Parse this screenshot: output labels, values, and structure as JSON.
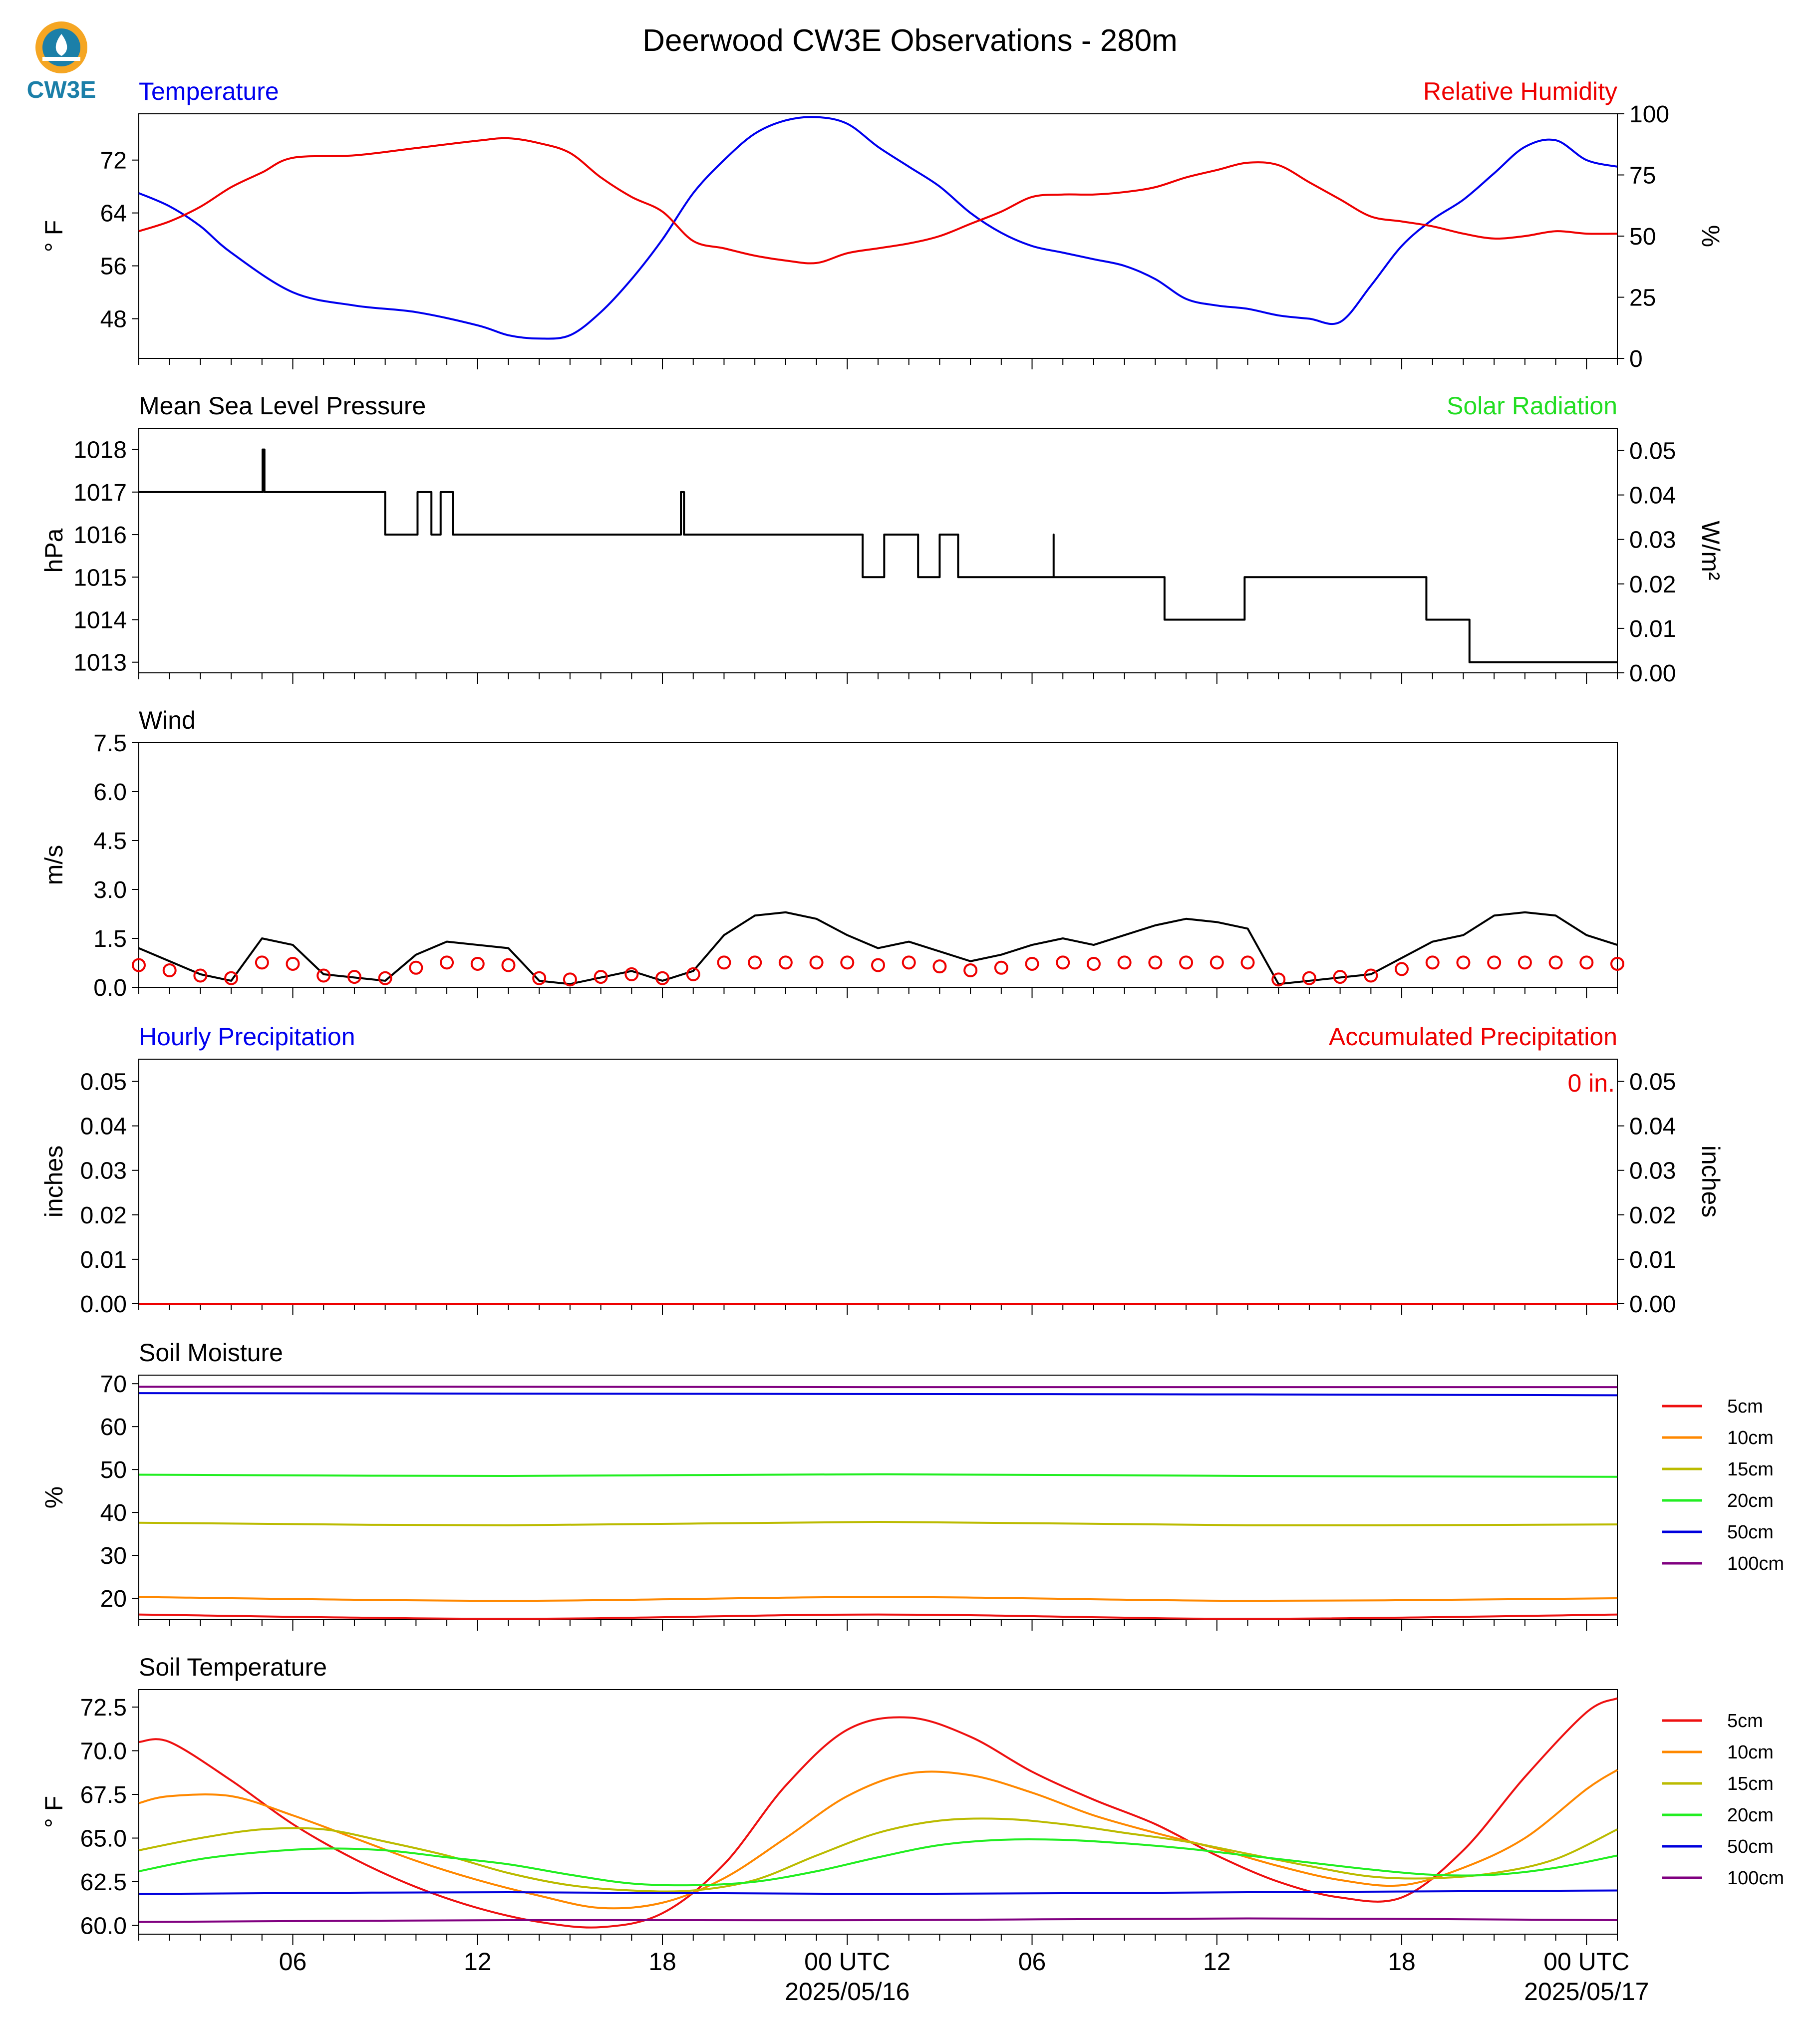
{
  "title": "Deerwood CW3E Observations - 280m",
  "logo_text": "CW3E",
  "colors": {
    "blue": "#0000ee",
    "red": "#ee0000",
    "green": "#22dd22",
    "black": "#000000",
    "s5": "#ee1111",
    "s10": "#ff8800",
    "s15": "#bbbb00",
    "s20": "#22ee22",
    "s50": "#0000dd",
    "s100": "#800080"
  },
  "time_axis": {
    "ticks": [
      "06",
      "12",
      "18",
      "00 UTC",
      "06",
      "12",
      "18",
      "00 UTC"
    ],
    "tick_hours": [
      6,
      12,
      18,
      24,
      30,
      36,
      42,
      48
    ],
    "date_labels": [
      "2025/05/16",
      "2025/05/17"
    ],
    "range_hours": [
      1,
      49
    ]
  },
  "panels": {
    "temp_rh": {
      "left_title": "Temperature",
      "right_title": "Relative Humidity",
      "ylabel": "° F",
      "y2label": "%"
    },
    "pressure": {
      "left_title": "Mean Sea Level Pressure",
      "right_title": "Solar Radiation",
      "ylabel": "hPa",
      "y2label": "W/m²"
    },
    "wind": {
      "left_title": "Wind",
      "ylabel": "m/s"
    },
    "precip": {
      "left_title": "Hourly Precipitation",
      "right_title": "Accumulated Precipitation",
      "ylabel": "inches",
      "y2label": "inches",
      "annotation": "0 in."
    },
    "soil_moisture": {
      "left_title": "Soil Moisture",
      "ylabel": "%"
    },
    "soil_temp": {
      "left_title": "Soil Temperature",
      "ylabel": "° F"
    }
  },
  "legend": [
    "5cm",
    "10cm",
    "15cm",
    "20cm",
    "50cm",
    "100cm"
  ],
  "chart_data": [
    {
      "type": "line",
      "panel": "temp_rh",
      "xlabel": "",
      "ylabel": "° F",
      "ylim": [
        42,
        79
      ],
      "y_ticks": [
        48,
        56,
        64,
        72
      ],
      "y2lim": [
        0,
        100
      ],
      "y2_ticks": [
        0,
        25,
        50,
        75,
        100
      ],
      "series": [
        {
          "name": "Temperature",
          "axis": "left",
          "x": [
            1,
            2,
            3,
            4,
            6,
            8,
            10,
            12,
            13,
            14,
            15,
            16,
            17,
            18,
            19,
            20,
            21,
            22,
            23,
            24,
            25,
            26,
            27,
            28,
            29,
            30,
            31,
            32,
            33,
            34,
            35,
            36,
            37,
            38,
            39,
            40,
            41,
            42,
            43,
            44,
            45,
            46,
            47,
            48,
            49
          ],
          "y": [
            67,
            65,
            62,
            58,
            52,
            50,
            49,
            47,
            45.5,
            45,
            45.5,
            49,
            54,
            60,
            67,
            72,
            76,
            78,
            78.5,
            77.5,
            74,
            71,
            68,
            64,
            61,
            59,
            58,
            57,
            56,
            54,
            51,
            50,
            49.5,
            48.5,
            48,
            47.5,
            53,
            59,
            63,
            66,
            70,
            74,
            75,
            72,
            71
          ]
        },
        {
          "name": "Relative Humidity",
          "axis": "right",
          "x": [
            1,
            2,
            3,
            4,
            5,
            6,
            8,
            10,
            12,
            13,
            14,
            15,
            16,
            17,
            18,
            19,
            20,
            21,
            22,
            23,
            24,
            25,
            26,
            27,
            28,
            29,
            30,
            31,
            32,
            33,
            34,
            35,
            36,
            37,
            38,
            39,
            40,
            41,
            42,
            43,
            44,
            45,
            46,
            47,
            48,
            49
          ],
          "y": [
            52,
            56,
            62,
            70,
            76,
            82,
            83,
            86,
            89,
            90,
            88,
            84,
            74,
            66,
            60,
            48,
            45,
            42,
            40,
            39,
            43,
            45,
            47,
            50,
            55,
            60,
            66,
            67,
            67,
            68,
            70,
            74,
            77,
            80,
            79,
            72,
            65,
            58,
            56,
            54,
            51,
            49,
            50,
            52,
            51,
            51
          ]
        }
      ]
    },
    {
      "type": "line",
      "panel": "pressure",
      "ylabel": "hPa",
      "ylim": [
        1012.75,
        1018.5
      ],
      "y_ticks": [
        1013,
        1014,
        1015,
        1016,
        1017,
        1018
      ],
      "y2lim": [
        0,
        0.055
      ],
      "y2_ticks": [
        0.0,
        0.01,
        0.02,
        0.03,
        0.04,
        0.05
      ],
      "series": [
        {
          "name": "Mean Sea Level Pressure",
          "axis": "left",
          "step": true,
          "x": [
            1,
            5.0,
            5.02,
            5.08,
            8.9,
            9.0,
            10.0,
            10.05,
            10.5,
            10.5,
            10.8,
            10.8,
            11.2,
            11.2,
            18.6,
            18.7,
            24.5,
            24.5,
            25.2,
            25.2,
            26.3,
            26.3,
            27.0,
            27.0,
            27.6,
            27.6,
            30.7,
            30.7,
            34.3,
            34.3,
            36.9,
            36.9,
            42.8,
            42.8,
            44.2,
            44.2,
            49
          ],
          "y": [
            1017,
            1017,
            1018,
            1017,
            1017,
            1016,
            1016,
            1017,
            1017,
            1016,
            1016,
            1017,
            1017,
            1016,
            1017,
            1016,
            1016,
            1015,
            1015,
            1016,
            1016,
            1015,
            1015,
            1016,
            1016,
            1015,
            1016,
            1015,
            1015,
            1014,
            1014,
            1015,
            1015,
            1014,
            1014,
            1013,
            1013
          ]
        }
      ]
    },
    {
      "type": "line",
      "panel": "wind",
      "ylabel": "m/s",
      "ylim": [
        0,
        7.5
      ],
      "y_ticks": [
        0.0,
        1.5,
        3.0,
        4.5,
        6.0,
        7.5
      ],
      "series": [
        {
          "name": "Wind speed",
          "x": [
            1,
            2,
            3,
            4,
            5,
            6,
            7,
            8,
            9,
            10,
            11,
            12,
            13,
            14,
            15,
            16,
            17,
            18,
            19,
            20,
            21,
            22,
            23,
            24,
            25,
            26,
            27,
            28,
            29,
            30,
            31,
            32,
            33,
            34,
            35,
            36,
            37,
            38,
            39,
            40,
            41,
            42,
            43,
            44,
            45,
            46,
            47,
            48,
            49
          ],
          "y": [
            1.2,
            0.8,
            0.4,
            0.2,
            1.5,
            1.3,
            0.4,
            0.3,
            0.2,
            1.0,
            1.4,
            1.3,
            1.2,
            0.2,
            0.1,
            0.3,
            0.5,
            0.2,
            0.5,
            1.6,
            2.2,
            2.3,
            2.1,
            1.6,
            1.2,
            1.4,
            1.1,
            0.8,
            1.0,
            1.3,
            1.5,
            1.3,
            1.6,
            1.9,
            2.1,
            2.0,
            1.8,
            0.1,
            0.2,
            0.3,
            0.4,
            0.9,
            1.4,
            1.6,
            2.2,
            2.3,
            2.2,
            1.6,
            1.3
          ]
        }
      ],
      "barb_times": [
        1,
        2,
        3,
        4,
        5,
        6,
        7,
        8,
        9,
        10,
        11,
        12,
        13,
        14,
        15,
        16,
        17,
        18,
        19,
        20,
        21,
        22,
        23,
        24,
        25,
        26,
        27,
        28,
        29,
        30,
        31,
        32,
        33,
        34,
        35,
        36,
        37,
        38,
        39,
        40,
        41,
        42,
        43,
        44,
        45,
        46,
        47,
        48,
        49
      ]
    },
    {
      "type": "line",
      "panel": "precip",
      "ylabel": "inches",
      "ylim": [
        0,
        0.055
      ],
      "y_ticks": [
        0.0,
        0.01,
        0.02,
        0.03,
        0.04,
        0.05
      ],
      "y2_ticks": [
        0.0,
        0.01,
        0.02,
        0.03,
        0.04,
        0.05
      ],
      "series": [
        {
          "name": "Hourly Precipitation",
          "axis": "left",
          "x": [
            1,
            49
          ],
          "y": [
            0,
            0
          ]
        },
        {
          "name": "Accumulated Precipitation",
          "axis": "right",
          "x": [
            1,
            49
          ],
          "y": [
            0,
            0
          ]
        }
      ]
    },
    {
      "type": "line",
      "panel": "soil_moisture",
      "ylabel": "%",
      "ylim": [
        15,
        72
      ],
      "y_ticks": [
        20,
        30,
        40,
        50,
        60,
        70
      ],
      "series": [
        {
          "name": "5cm",
          "x": [
            1,
            13,
            25,
            37,
            49
          ],
          "y": [
            16.2,
            15.2,
            16.2,
            15.2,
            16.2
          ]
        },
        {
          "name": "10cm",
          "x": [
            1,
            13,
            25,
            37,
            49
          ],
          "y": [
            20.3,
            19.4,
            20.3,
            19.4,
            20.0
          ]
        },
        {
          "name": "15cm",
          "x": [
            1,
            13,
            25,
            37,
            49
          ],
          "y": [
            37.6,
            37.0,
            37.8,
            37.0,
            37.2
          ]
        },
        {
          "name": "20cm",
          "x": [
            1,
            13,
            25,
            37,
            49
          ],
          "y": [
            48.8,
            48.5,
            48.9,
            48.5,
            48.3
          ]
        },
        {
          "name": "50cm",
          "x": [
            1,
            13,
            25,
            37,
            49
          ],
          "y": [
            67.8,
            67.7,
            67.6,
            67.5,
            67.3
          ]
        },
        {
          "name": "100cm",
          "x": [
            1,
            13,
            25,
            37,
            49
          ],
          "y": [
            69.3,
            69.3,
            69.2,
            69.2,
            69.2
          ]
        }
      ]
    },
    {
      "type": "line",
      "panel": "soil_temp",
      "ylabel": "° F",
      "ylim": [
        59.5,
        73.5
      ],
      "y_ticks": [
        60.0,
        62.5,
        65.0,
        67.5,
        70.0,
        72.5
      ],
      "series": [
        {
          "name": "5cm",
          "x": [
            1,
            2,
            4,
            6,
            8,
            10,
            12,
            14,
            16,
            18,
            20,
            22,
            24,
            26,
            28,
            30,
            32,
            34,
            36,
            38,
            40,
            42,
            44,
            46,
            48,
            49
          ],
          "y": [
            70.5,
            70.5,
            68.3,
            65.8,
            63.8,
            62.2,
            61.0,
            60.2,
            59.9,
            60.7,
            63.5,
            68.0,
            71.2,
            71.9,
            70.8,
            68.8,
            67.2,
            65.8,
            64.0,
            62.5,
            61.6,
            61.6,
            64.3,
            68.5,
            72.2,
            73.0
          ]
        },
        {
          "name": "10cm",
          "x": [
            1,
            2,
            4,
            6,
            8,
            10,
            12,
            14,
            16,
            18,
            20,
            22,
            24,
            26,
            28,
            30,
            32,
            34,
            36,
            38,
            40,
            42,
            44,
            46,
            48,
            49
          ],
          "y": [
            67.0,
            67.4,
            67.4,
            66.3,
            65.0,
            63.7,
            62.6,
            61.7,
            61.0,
            61.3,
            62.7,
            65.0,
            67.4,
            68.7,
            68.6,
            67.6,
            66.3,
            65.3,
            64.4,
            63.4,
            62.6,
            62.3,
            63.3,
            65.0,
            67.8,
            68.9
          ]
        },
        {
          "name": "15cm",
          "x": [
            1,
            3,
            5,
            7,
            9,
            11,
            13,
            15,
            17,
            19,
            21,
            23,
            25,
            27,
            29,
            31,
            33,
            35,
            37,
            39,
            41,
            43,
            45,
            47,
            49
          ],
          "y": [
            64.3,
            65.0,
            65.5,
            65.5,
            64.8,
            64.0,
            63.0,
            62.3,
            62.0,
            62.0,
            62.6,
            64.0,
            65.3,
            66.0,
            66.1,
            65.8,
            65.3,
            64.8,
            64.1,
            63.4,
            62.8,
            62.7,
            63.0,
            63.8,
            65.5
          ]
        },
        {
          "name": "20cm",
          "x": [
            1,
            3,
            5,
            7,
            9,
            11,
            13,
            15,
            17,
            19,
            21,
            23,
            25,
            27,
            29,
            31,
            33,
            35,
            37,
            39,
            41,
            43,
            45,
            47,
            49
          ],
          "y": [
            63.1,
            63.8,
            64.2,
            64.4,
            64.3,
            63.9,
            63.5,
            62.9,
            62.4,
            62.3,
            62.5,
            63.1,
            63.9,
            64.6,
            64.9,
            64.9,
            64.7,
            64.4,
            64.0,
            63.6,
            63.2,
            62.9,
            62.9,
            63.3,
            64.0
          ]
        },
        {
          "name": "50cm",
          "x": [
            1,
            13,
            25,
            37,
            49
          ],
          "y": [
            61.8,
            61.9,
            61.8,
            61.9,
            62.0
          ]
        },
        {
          "name": "100cm",
          "x": [
            1,
            13,
            25,
            37,
            49
          ],
          "y": [
            60.2,
            60.3,
            60.3,
            60.4,
            60.3
          ]
        }
      ]
    }
  ]
}
